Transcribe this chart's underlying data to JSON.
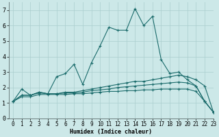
{
  "xlabel": "Humidex (Indice chaleur)",
  "background_color": "#cce8e8",
  "grid_color": "#aacece",
  "line_color": "#1a6b6b",
  "xlim": [
    -0.5,
    23
  ],
  "ylim": [
    0,
    7.5
  ],
  "x_ticks": [
    0,
    1,
    2,
    3,
    4,
    5,
    6,
    7,
    8,
    9,
    10,
    11,
    12,
    13,
    14,
    15,
    16,
    17,
    18,
    19,
    20,
    21,
    22,
    23
  ],
  "y_ticks": [
    0,
    1,
    2,
    3,
    4,
    5,
    6,
    7
  ],
  "series": [
    [
      1.1,
      1.9,
      1.5,
      1.7,
      1.6,
      2.7,
      2.9,
      3.5,
      2.2,
      3.6,
      4.7,
      5.9,
      5.7,
      5.7,
      7.1,
      6.0,
      6.6,
      3.8,
      2.9,
      3.0,
      2.5,
      2.1,
      1.1,
      0.4
    ],
    [
      1.1,
      1.5,
      1.5,
      1.7,
      1.6,
      1.6,
      1.7,
      1.7,
      1.8,
      1.9,
      2.0,
      2.1,
      2.2,
      2.3,
      2.4,
      2.4,
      2.5,
      2.6,
      2.7,
      2.8,
      2.7,
      2.5,
      2.1,
      0.4
    ],
    [
      1.1,
      1.5,
      1.5,
      1.65,
      1.6,
      1.6,
      1.65,
      1.65,
      1.7,
      1.8,
      1.85,
      1.9,
      2.0,
      2.05,
      2.1,
      2.15,
      2.2,
      2.25,
      2.3,
      2.35,
      2.3,
      2.1,
      1.1,
      0.4
    ],
    [
      1.1,
      1.4,
      1.4,
      1.55,
      1.55,
      1.55,
      1.55,
      1.6,
      1.6,
      1.65,
      1.7,
      1.75,
      1.75,
      1.8,
      1.8,
      1.85,
      1.85,
      1.9,
      1.9,
      1.9,
      1.9,
      1.75,
      1.1,
      0.4
    ]
  ],
  "linewidth": 0.8,
  "markersize": 2.5,
  "tick_fontsize": 5.5,
  "xlabel_fontsize": 6.0
}
